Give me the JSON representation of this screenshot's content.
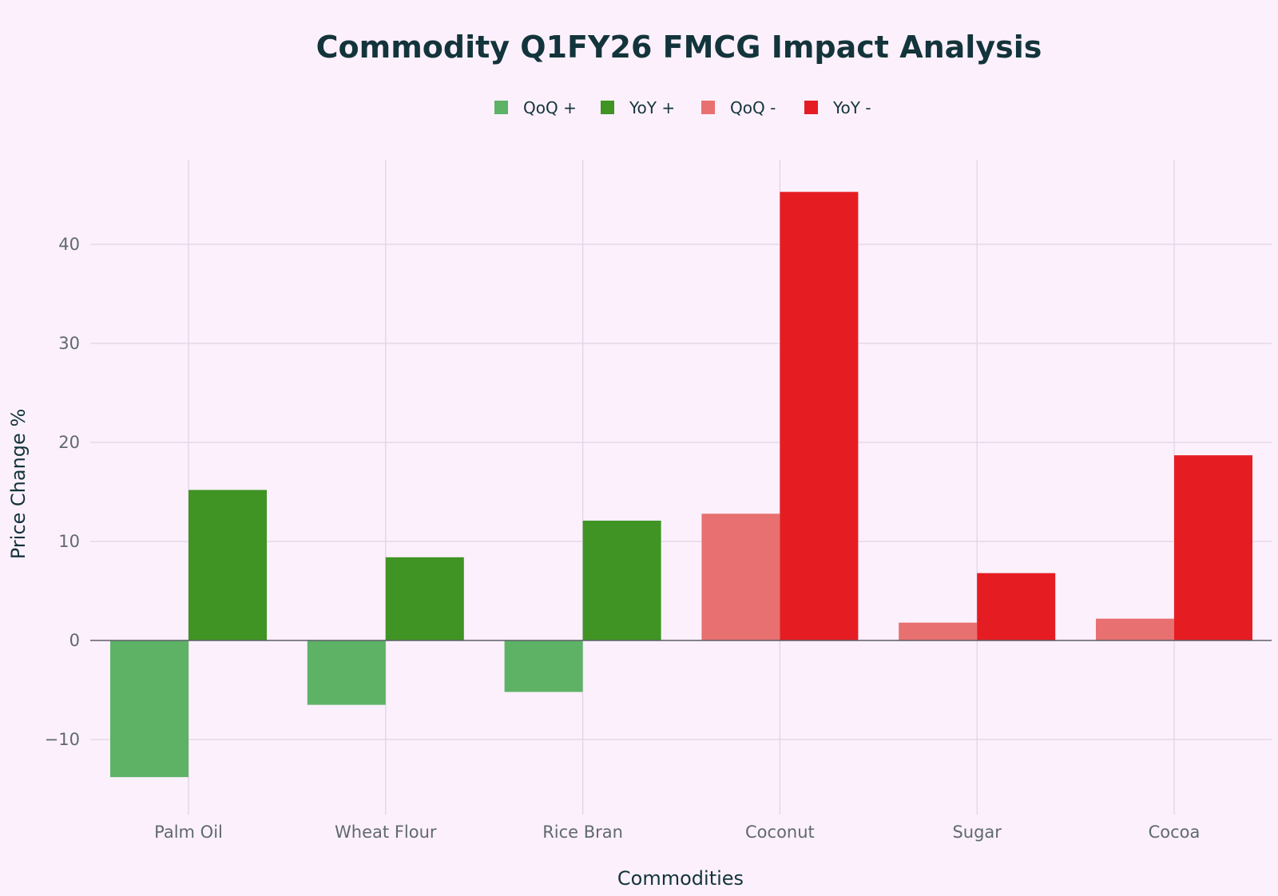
{
  "chart_data": {
    "type": "bar",
    "title": "Commodity Q1FY26 FMCG Impact Analysis",
    "xlabel": "Commodities",
    "ylabel": "Price Change %",
    "categories": [
      "Palm Oil",
      "Wheat Flour",
      "Rice Bran",
      "Coconut",
      "Sugar",
      "Cocoa"
    ],
    "ylim": [
      -17.5,
      49
    ],
    "yticks": [
      -10,
      0,
      10,
      20,
      30,
      40
    ],
    "ytick_labels": [
      "−10",
      "0",
      "10",
      "20",
      "30",
      "40"
    ],
    "grid": true,
    "legend_position": "top-center",
    "series": [
      {
        "name": "QoQ +",
        "color": "#5db265",
        "slot": "QoQ",
        "values": [
          -13.8,
          -6.5,
          -5.2,
          null,
          null,
          null
        ]
      },
      {
        "name": "YoY +",
        "color": "#3f9423",
        "slot": "YoY",
        "values": [
          15.2,
          8.4,
          12.1,
          null,
          null,
          null
        ]
      },
      {
        "name": "QoQ -",
        "color": "#e87070",
        "slot": "QoQ",
        "values": [
          null,
          null,
          null,
          12.8,
          1.8,
          2.2
        ]
      },
      {
        "name": "YoY -",
        "color": "#e51d23",
        "slot": "YoY",
        "values": [
          null,
          null,
          null,
          45.3,
          6.8,
          18.7
        ]
      }
    ]
  }
}
